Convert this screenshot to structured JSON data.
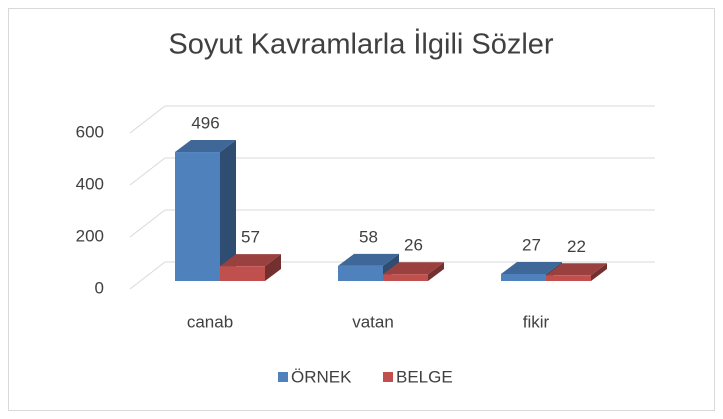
{
  "chart_data": {
    "type": "bar3d",
    "title": "Soyut Kavramlarla İlgili Sözler",
    "categories": [
      "canab",
      "vatan",
      "fikir"
    ],
    "series": [
      {
        "name": "ÖRNEK",
        "color": "#4f81bd",
        "values": [
          496,
          58,
          27
        ]
      },
      {
        "name": "BELGE",
        "color": "#c0504d",
        "values": [
          57,
          26,
          22
        ]
      }
    ],
    "ylim": [
      0,
      600
    ],
    "yticks": [
      0,
      200,
      400,
      600
    ],
    "grid": true,
    "legend": "bottom"
  }
}
